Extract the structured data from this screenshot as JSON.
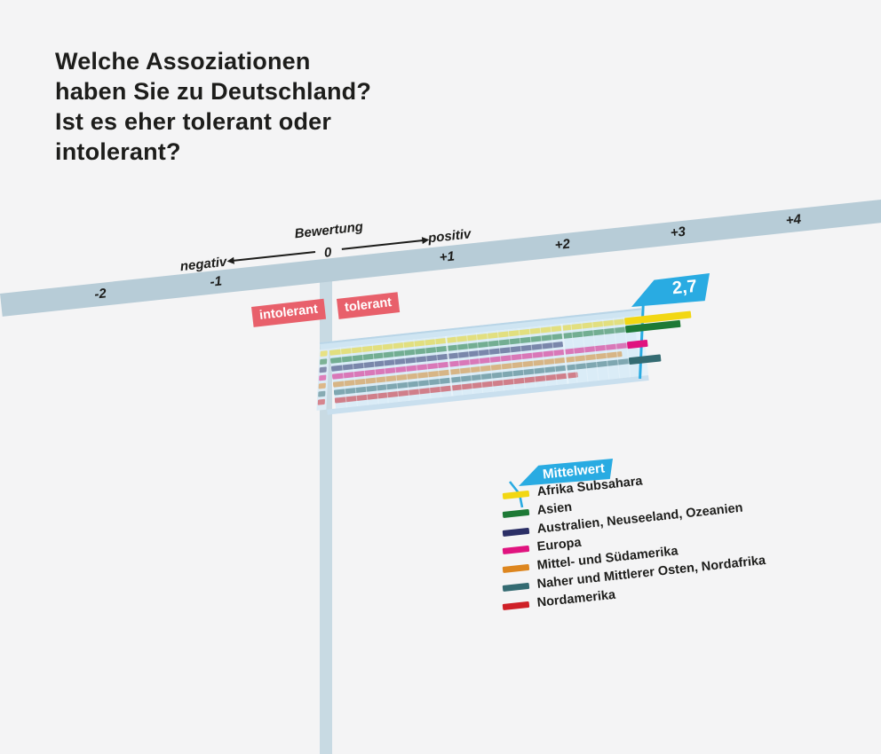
{
  "title": {
    "lines": [
      "Welche Assoziationen",
      "haben Sie zu Deutschland?",
      "Ist es eher tolerant oder",
      "intolerant?"
    ]
  },
  "axis": {
    "name_label": "Bewertung",
    "zero_label": "0",
    "negative_label": "negativ",
    "positive_label": "positiv",
    "ticks": [
      {
        "label": "-2",
        "value": -2
      },
      {
        "label": "-1",
        "value": -1
      },
      {
        "label": "+1",
        "value": 1
      },
      {
        "label": "+2",
        "value": 2
      },
      {
        "label": "+3",
        "value": 3
      },
      {
        "label": "+4",
        "value": 4
      }
    ]
  },
  "annotations": {
    "intolerant_label": "intolerant",
    "tolerant_label": "tolerant",
    "mean_label": "Mittelwert",
    "mean_value_label": "2,7"
  },
  "colors": {
    "accent_blue": "#29abe2",
    "chip_pink": "#e8606b",
    "axis_band": "#b7ccd7",
    "background": "#f4f4f5",
    "text": "#1d1d1b"
  },
  "chart_data": {
    "type": "bar",
    "orientation": "horizontal",
    "title": "Welche Assoziationen haben Sie zu Deutschland? Ist es eher tolerant oder intolerant?",
    "xlabel": "Bewertung",
    "axis_range": [
      -2,
      4
    ],
    "grid": true,
    "legend_position": "bottom-right",
    "categories": [
      "Afrika Subsahara",
      "Asien",
      "Australien, Neuseeland, Ozeanien",
      "Europa",
      "Mittel- und Südamerika",
      "Naher und Mittlerer Osten, Nordafrika",
      "Nordamerika"
    ],
    "values": [
      3.1,
      3.0,
      2.0,
      2.7,
      2.5,
      2.8,
      2.1
    ],
    "colors": [
      "#f2d713",
      "#1e7a36",
      "#2b2f66",
      "#e0137f",
      "#dd861f",
      "#346b72",
      "#cf2027"
    ],
    "mean": {
      "label": "Mittelwert",
      "value": 2.7,
      "display": "2,7"
    }
  }
}
